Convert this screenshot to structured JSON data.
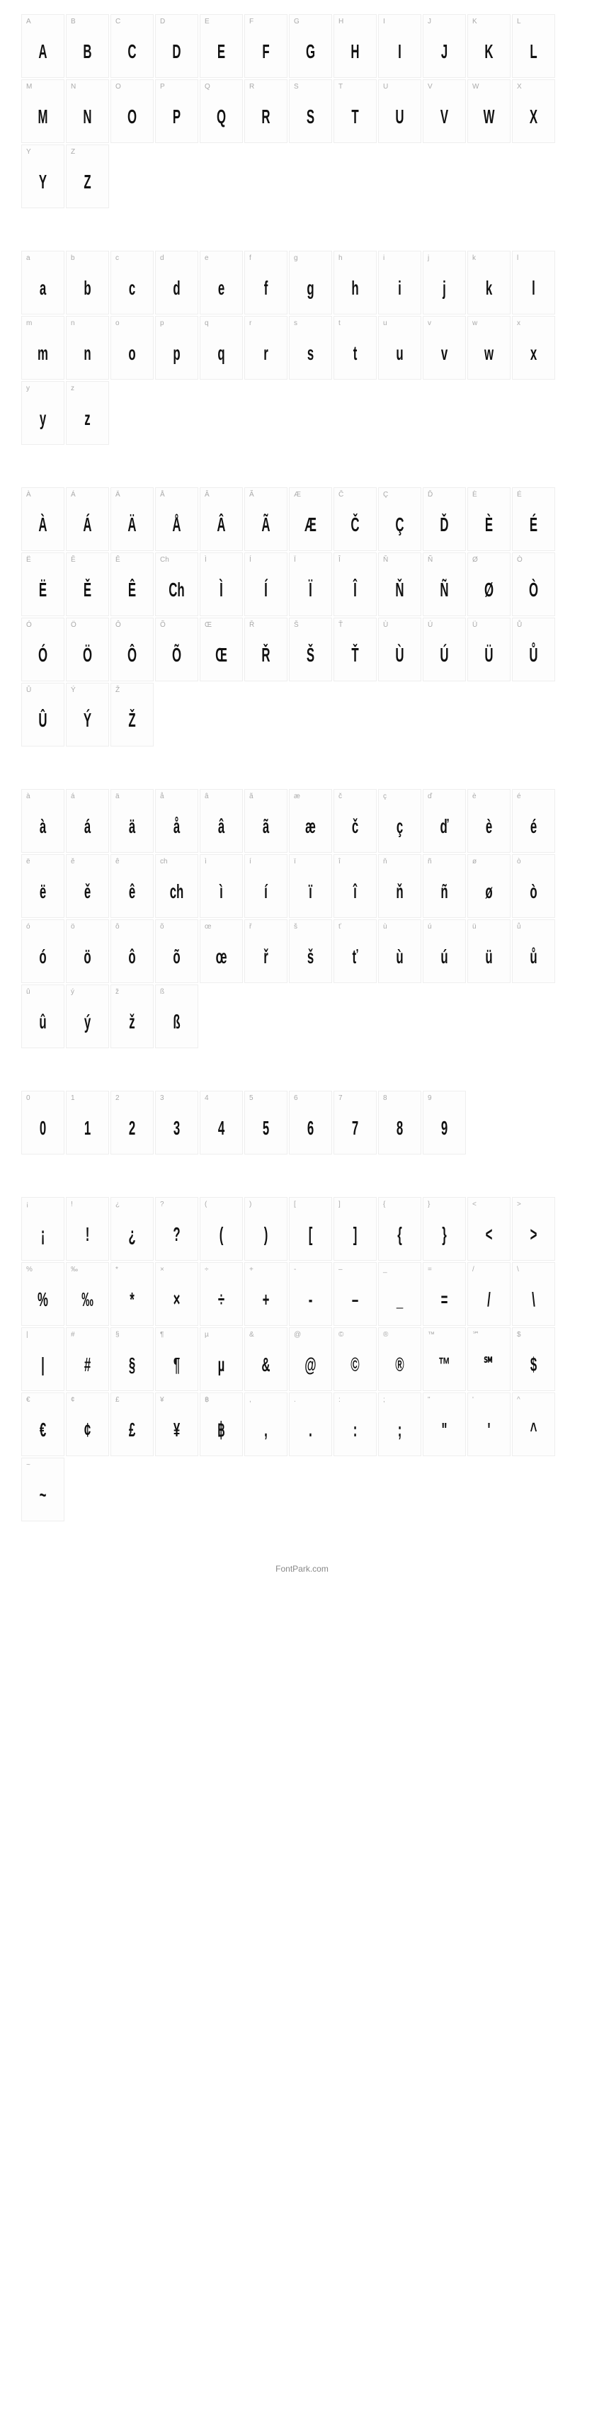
{
  "blocks": [
    [
      {
        "l": "A",
        "g": "A"
      },
      {
        "l": "B",
        "g": "B"
      },
      {
        "l": "C",
        "g": "C"
      },
      {
        "l": "D",
        "g": "D"
      },
      {
        "l": "E",
        "g": "E"
      },
      {
        "l": "F",
        "g": "F"
      },
      {
        "l": "G",
        "g": "G"
      },
      {
        "l": "H",
        "g": "H"
      },
      {
        "l": "I",
        "g": "I"
      },
      {
        "l": "J",
        "g": "J"
      },
      {
        "l": "K",
        "g": "K"
      },
      {
        "l": "L",
        "g": "L"
      },
      {
        "l": "M",
        "g": "M"
      },
      {
        "l": "N",
        "g": "N"
      },
      {
        "l": "O",
        "g": "O"
      },
      {
        "l": "P",
        "g": "P"
      },
      {
        "l": "Q",
        "g": "Q"
      },
      {
        "l": "R",
        "g": "R"
      },
      {
        "l": "S",
        "g": "S"
      },
      {
        "l": "T",
        "g": "T"
      },
      {
        "l": "U",
        "g": "U"
      },
      {
        "l": "V",
        "g": "V"
      },
      {
        "l": "W",
        "g": "W"
      },
      {
        "l": "X",
        "g": "X"
      },
      {
        "l": "Y",
        "g": "Y"
      },
      {
        "l": "Z",
        "g": "Z"
      }
    ],
    [
      {
        "l": "a",
        "g": "a"
      },
      {
        "l": "b",
        "g": "b"
      },
      {
        "l": "c",
        "g": "c"
      },
      {
        "l": "d",
        "g": "d"
      },
      {
        "l": "e",
        "g": "e"
      },
      {
        "l": "f",
        "g": "f"
      },
      {
        "l": "g",
        "g": "g"
      },
      {
        "l": "h",
        "g": "h"
      },
      {
        "l": "i",
        "g": "i"
      },
      {
        "l": "j",
        "g": "j"
      },
      {
        "l": "k",
        "g": "k"
      },
      {
        "l": "l",
        "g": "l"
      },
      {
        "l": "m",
        "g": "m"
      },
      {
        "l": "n",
        "g": "n"
      },
      {
        "l": "o",
        "g": "o"
      },
      {
        "l": "p",
        "g": "p"
      },
      {
        "l": "q",
        "g": "q"
      },
      {
        "l": "r",
        "g": "r"
      },
      {
        "l": "s",
        "g": "s"
      },
      {
        "l": "t",
        "g": "t"
      },
      {
        "l": "u",
        "g": "u"
      },
      {
        "l": "v",
        "g": "v"
      },
      {
        "l": "w",
        "g": "w"
      },
      {
        "l": "x",
        "g": "x"
      },
      {
        "l": "y",
        "g": "y"
      },
      {
        "l": "z",
        "g": "z"
      }
    ],
    [
      {
        "l": "À",
        "g": "À"
      },
      {
        "l": "Á",
        "g": "Á"
      },
      {
        "l": "Ä",
        "g": "Ä"
      },
      {
        "l": "Å",
        "g": "Å"
      },
      {
        "l": "Â",
        "g": "Â"
      },
      {
        "l": "Ã",
        "g": "Ã"
      },
      {
        "l": "Æ",
        "g": "Æ"
      },
      {
        "l": "Č",
        "g": "Č"
      },
      {
        "l": "Ç",
        "g": "Ç"
      },
      {
        "l": "Ď",
        "g": "Ď"
      },
      {
        "l": "È",
        "g": "È"
      },
      {
        "l": "É",
        "g": "É"
      },
      {
        "l": "Ë",
        "g": "Ë"
      },
      {
        "l": "Ě",
        "g": "Ě"
      },
      {
        "l": "Ê",
        "g": "Ê"
      },
      {
        "l": "Ch",
        "g": "Ch"
      },
      {
        "l": "Ì",
        "g": "Ì"
      },
      {
        "l": "Í",
        "g": "Í"
      },
      {
        "l": "Ï",
        "g": "Ï"
      },
      {
        "l": "Î",
        "g": "Î"
      },
      {
        "l": "Ň",
        "g": "Ň"
      },
      {
        "l": "Ñ",
        "g": "Ñ"
      },
      {
        "l": "Ø",
        "g": "Ø"
      },
      {
        "l": "Ò",
        "g": "Ò"
      },
      {
        "l": "Ó",
        "g": "Ó"
      },
      {
        "l": "Ö",
        "g": "Ö"
      },
      {
        "l": "Ô",
        "g": "Ô"
      },
      {
        "l": "Õ",
        "g": "Õ"
      },
      {
        "l": "Œ",
        "g": "Œ"
      },
      {
        "l": "Ř",
        "g": "Ř"
      },
      {
        "l": "Š",
        "g": "Š"
      },
      {
        "l": "Ť",
        "g": "Ť"
      },
      {
        "l": "Ù",
        "g": "Ù"
      },
      {
        "l": "Ú",
        "g": "Ú"
      },
      {
        "l": "Ü",
        "g": "Ü"
      },
      {
        "l": "Ů",
        "g": "Ů"
      },
      {
        "l": "Û",
        "g": "Û"
      },
      {
        "l": "Ý",
        "g": "Ý"
      },
      {
        "l": "Ž",
        "g": "Ž"
      }
    ],
    [
      {
        "l": "à",
        "g": "à"
      },
      {
        "l": "á",
        "g": "á"
      },
      {
        "l": "ä",
        "g": "ä"
      },
      {
        "l": "å",
        "g": "å"
      },
      {
        "l": "â",
        "g": "â"
      },
      {
        "l": "ã",
        "g": "ã"
      },
      {
        "l": "æ",
        "g": "æ"
      },
      {
        "l": "č",
        "g": "č"
      },
      {
        "l": "ç",
        "g": "ç"
      },
      {
        "l": "ď",
        "g": "ď"
      },
      {
        "l": "è",
        "g": "è"
      },
      {
        "l": "é",
        "g": "é"
      },
      {
        "l": "ë",
        "g": "ë"
      },
      {
        "l": "ě",
        "g": "ě"
      },
      {
        "l": "ê",
        "g": "ê"
      },
      {
        "l": "ch",
        "g": "ch"
      },
      {
        "l": "ì",
        "g": "ì"
      },
      {
        "l": "í",
        "g": "í"
      },
      {
        "l": "ï",
        "g": "ï"
      },
      {
        "l": "î",
        "g": "î"
      },
      {
        "l": "ň",
        "g": "ň"
      },
      {
        "l": "ñ",
        "g": "ñ"
      },
      {
        "l": "ø",
        "g": "ø"
      },
      {
        "l": "ò",
        "g": "ò"
      },
      {
        "l": "ó",
        "g": "ó"
      },
      {
        "l": "ö",
        "g": "ö"
      },
      {
        "l": "ô",
        "g": "ô"
      },
      {
        "l": "õ",
        "g": "õ"
      },
      {
        "l": "œ",
        "g": "œ"
      },
      {
        "l": "ř",
        "g": "ř"
      },
      {
        "l": "š",
        "g": "š"
      },
      {
        "l": "ť",
        "g": "ť"
      },
      {
        "l": "ù",
        "g": "ù"
      },
      {
        "l": "ú",
        "g": "ú"
      },
      {
        "l": "ü",
        "g": "ü"
      },
      {
        "l": "ů",
        "g": "ů"
      },
      {
        "l": "û",
        "g": "û"
      },
      {
        "l": "ý",
        "g": "ý"
      },
      {
        "l": "ž",
        "g": "ž"
      },
      {
        "l": "ß",
        "g": "ß"
      }
    ],
    [
      {
        "l": "0",
        "g": "0"
      },
      {
        "l": "1",
        "g": "1"
      },
      {
        "l": "2",
        "g": "2"
      },
      {
        "l": "3",
        "g": "3"
      },
      {
        "l": "4",
        "g": "4"
      },
      {
        "l": "5",
        "g": "5"
      },
      {
        "l": "6",
        "g": "6"
      },
      {
        "l": "7",
        "g": "7"
      },
      {
        "l": "8",
        "g": "8"
      },
      {
        "l": "9",
        "g": "9"
      }
    ],
    [
      {
        "l": "¡",
        "g": "¡"
      },
      {
        "l": "!",
        "g": "!"
      },
      {
        "l": "¿",
        "g": "¿"
      },
      {
        "l": "?",
        "g": "?"
      },
      {
        "l": "(",
        "g": "("
      },
      {
        "l": ")",
        "g": ")"
      },
      {
        "l": "[",
        "g": "["
      },
      {
        "l": "]",
        "g": "]"
      },
      {
        "l": "{",
        "g": "{"
      },
      {
        "l": "}",
        "g": "}"
      },
      {
        "l": "<",
        "g": "<"
      },
      {
        "l": ">",
        "g": ">"
      },
      {
        "l": "%",
        "g": "%"
      },
      {
        "l": "‰",
        "g": "‰"
      },
      {
        "l": "*",
        "g": "*"
      },
      {
        "l": "×",
        "g": "×"
      },
      {
        "l": "÷",
        "g": "÷"
      },
      {
        "l": "+",
        "g": "+"
      },
      {
        "l": "-",
        "g": "-"
      },
      {
        "l": "–",
        "g": "–"
      },
      {
        "l": "_",
        "g": "_"
      },
      {
        "l": "=",
        "g": "="
      },
      {
        "l": "/",
        "g": "/"
      },
      {
        "l": "\\",
        "g": "\\"
      },
      {
        "l": "|",
        "g": "|"
      },
      {
        "l": "#",
        "g": "#"
      },
      {
        "l": "§",
        "g": "§"
      },
      {
        "l": "¶",
        "g": "¶"
      },
      {
        "l": "µ",
        "g": "µ"
      },
      {
        "l": "&",
        "g": "&"
      },
      {
        "l": "@",
        "g": "@"
      },
      {
        "l": "©",
        "g": "©"
      },
      {
        "l": "®",
        "g": "®"
      },
      {
        "l": "™",
        "g": "™"
      },
      {
        "l": "℠",
        "g": "℠"
      },
      {
        "l": "$",
        "g": "$"
      },
      {
        "l": "€",
        "g": "€"
      },
      {
        "l": "¢",
        "g": "¢"
      },
      {
        "l": "£",
        "g": "£"
      },
      {
        "l": "¥",
        "g": "¥"
      },
      {
        "l": "฿",
        "g": "฿"
      },
      {
        "l": ",",
        "g": ","
      },
      {
        "l": ".",
        "g": "."
      },
      {
        "l": ":",
        "g": ":"
      },
      {
        "l": ";",
        "g": ";"
      },
      {
        "l": "\"",
        "g": "\""
      },
      {
        "l": "'",
        "g": "'"
      },
      {
        "l": "^",
        "g": "^"
      },
      {
        "l": "~",
        "g": "~"
      }
    ]
  ],
  "footer": "FontPark.com"
}
